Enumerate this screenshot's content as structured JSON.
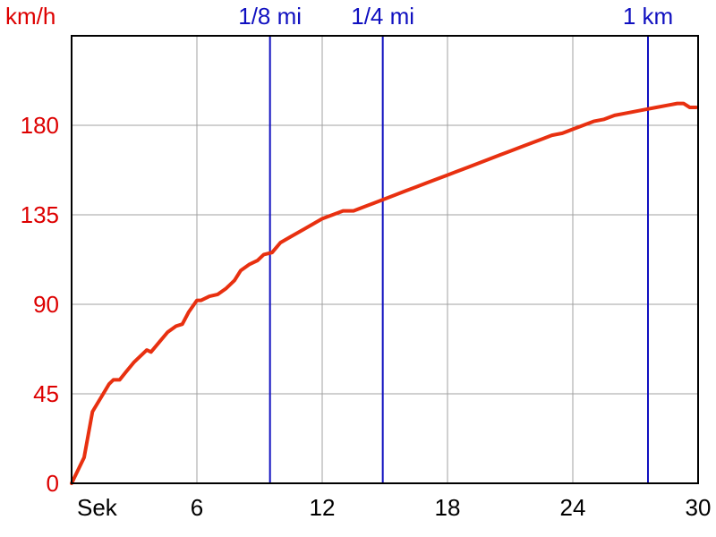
{
  "chart_data": {
    "type": "line",
    "title": "",
    "ylabel": "km/h",
    "xlabel": "Sek",
    "xlim": [
      0,
      30
    ],
    "ylim": [
      0,
      225
    ],
    "x_ticks": [
      6,
      12,
      18,
      24,
      30
    ],
    "y_ticks": [
      0,
      45,
      90,
      135,
      180
    ],
    "grid": true,
    "colors": {
      "series": "#e83010",
      "markers": "#1010c0",
      "ylabels": "#dd0000",
      "grid": "#a0a0a0",
      "axis": "#000000"
    },
    "markers": [
      {
        "label": "1/8 mi",
        "x": 9.5
      },
      {
        "label": "1/4 mi",
        "x": 14.9
      },
      {
        "label": "1 km",
        "x": 27.6
      }
    ],
    "series": [
      {
        "points": [
          [
            0,
            0
          ],
          [
            0.6,
            13
          ],
          [
            1.0,
            36
          ],
          [
            1.4,
            43
          ],
          [
            1.8,
            50
          ],
          [
            2.0,
            52
          ],
          [
            2.3,
            52
          ],
          [
            2.6,
            56
          ],
          [
            3.0,
            61
          ],
          [
            3.4,
            65
          ],
          [
            3.6,
            67
          ],
          [
            3.8,
            66
          ],
          [
            4.2,
            71
          ],
          [
            4.6,
            76
          ],
          [
            5.0,
            79
          ],
          [
            5.3,
            80
          ],
          [
            5.6,
            86
          ],
          [
            6.0,
            92
          ],
          [
            6.2,
            92
          ],
          [
            6.6,
            94
          ],
          [
            7.0,
            95
          ],
          [
            7.4,
            98
          ],
          [
            7.8,
            102
          ],
          [
            8.1,
            107
          ],
          [
            8.5,
            110
          ],
          [
            8.9,
            112
          ],
          [
            9.2,
            115
          ],
          [
            9.6,
            116
          ],
          [
            10.0,
            121
          ],
          [
            10.5,
            124
          ],
          [
            11.0,
            127
          ],
          [
            11.5,
            130
          ],
          [
            12.0,
            133
          ],
          [
            12.5,
            135
          ],
          [
            13.0,
            137
          ],
          [
            13.5,
            137
          ],
          [
            14.0,
            139
          ],
          [
            14.5,
            141
          ],
          [
            15.0,
            143
          ],
          [
            15.5,
            145
          ],
          [
            16.0,
            147
          ],
          [
            16.5,
            149
          ],
          [
            17.0,
            151
          ],
          [
            17.5,
            153
          ],
          [
            18.0,
            155
          ],
          [
            18.5,
            157
          ],
          [
            19.0,
            159
          ],
          [
            19.5,
            161
          ],
          [
            20.0,
            163
          ],
          [
            20.5,
            165
          ],
          [
            21.0,
            167
          ],
          [
            21.5,
            169
          ],
          [
            22.0,
            171
          ],
          [
            22.5,
            173
          ],
          [
            23.0,
            175
          ],
          [
            23.5,
            176
          ],
          [
            24.0,
            178
          ],
          [
            24.5,
            180
          ],
          [
            25.0,
            182
          ],
          [
            25.5,
            183
          ],
          [
            26.0,
            185
          ],
          [
            26.5,
            186
          ],
          [
            27.0,
            187
          ],
          [
            27.5,
            188
          ],
          [
            28.0,
            189
          ],
          [
            28.5,
            190
          ],
          [
            29.0,
            191
          ],
          [
            29.3,
            191
          ],
          [
            29.6,
            189
          ],
          [
            29.9,
            189
          ]
        ]
      }
    ]
  }
}
